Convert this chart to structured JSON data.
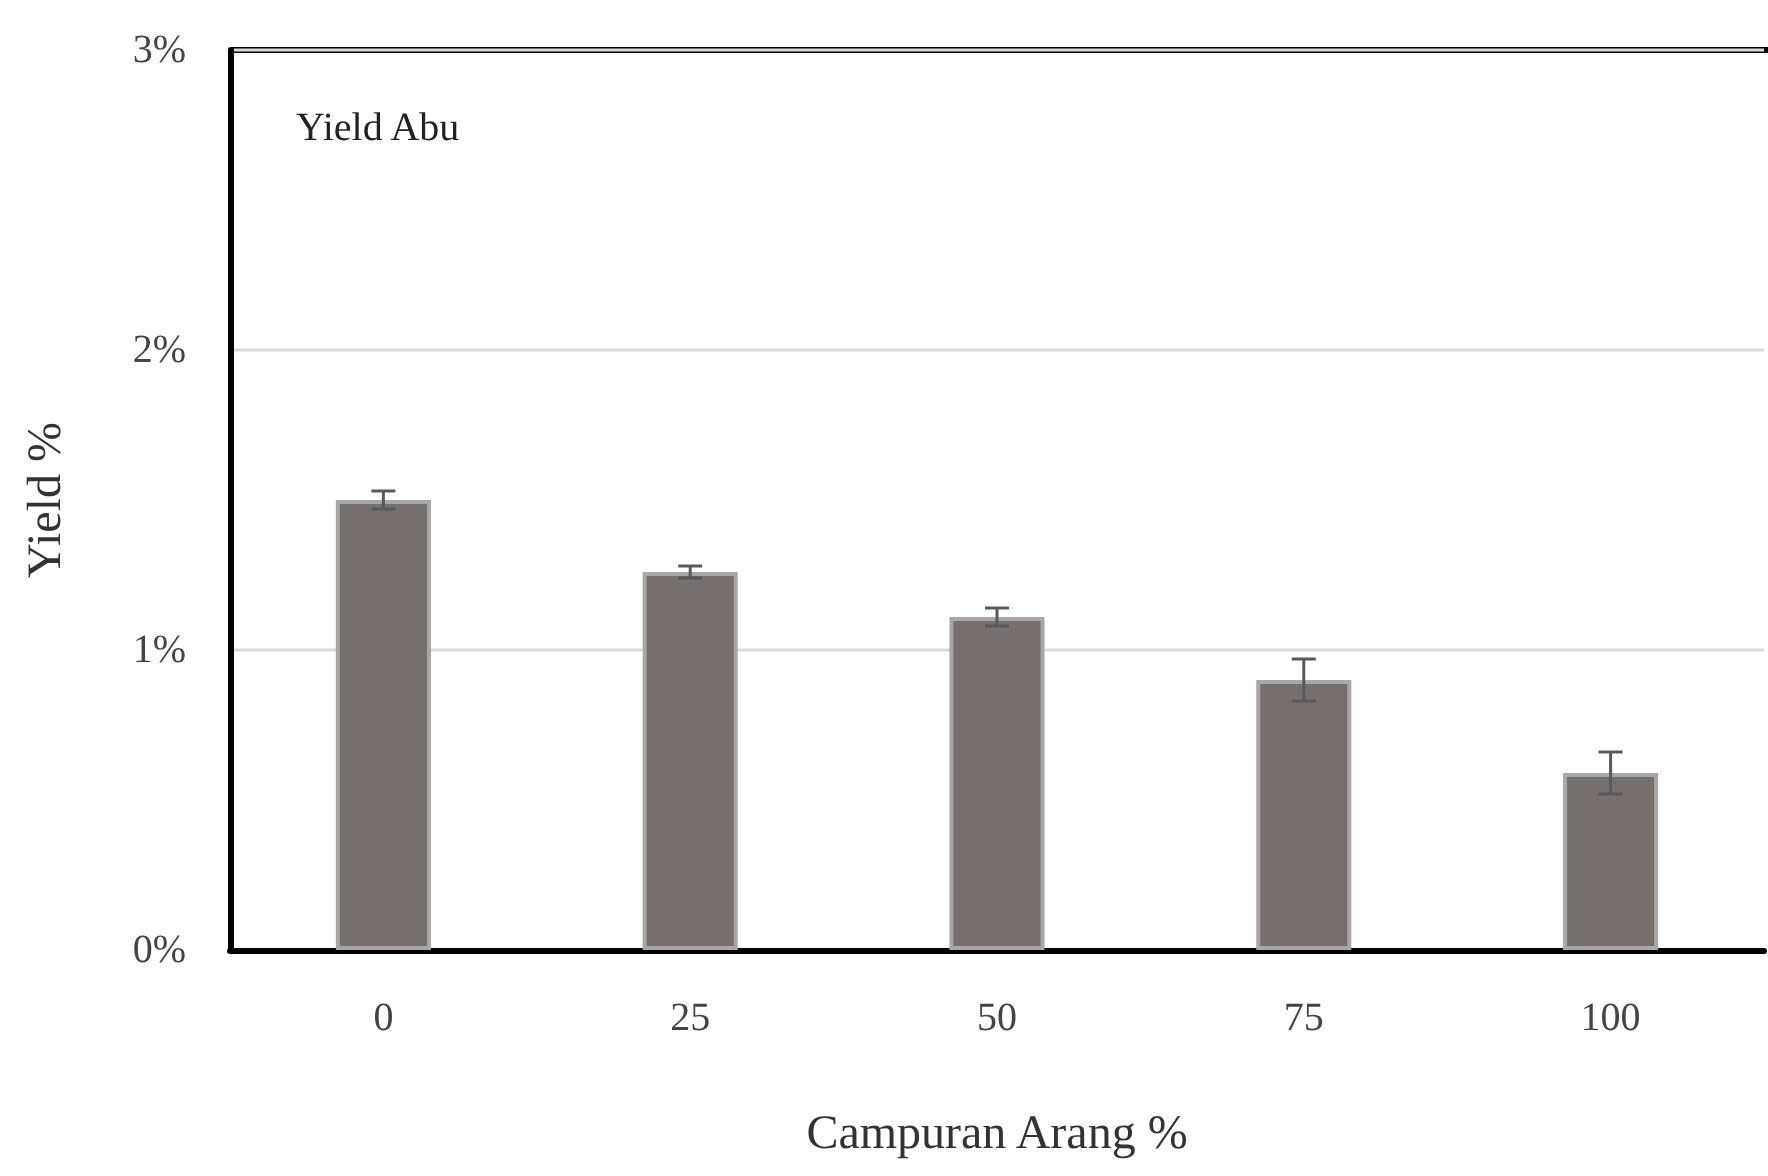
{
  "chart_data": {
    "type": "bar",
    "annotations": [
      "Yield Abu"
    ],
    "xlabel": "Campuran Arang %",
    "ylabel": "Yield %",
    "categories": [
      "0",
      "25",
      "50",
      "75",
      "100"
    ],
    "values": [
      1.5,
      1.26,
      1.11,
      0.9,
      0.59
    ],
    "errors": [
      0.03,
      0.02,
      0.03,
      0.07,
      0.07
    ],
    "color": "#747070",
    "ylim": [
      0,
      3
    ],
    "yticks": [
      {
        "value": 0,
        "label": "0%"
      },
      {
        "value": 1,
        "label": "1%"
      },
      {
        "value": 2,
        "label": "2%"
      },
      {
        "value": 3,
        "label": "3%"
      }
    ],
    "grid": "y"
  }
}
